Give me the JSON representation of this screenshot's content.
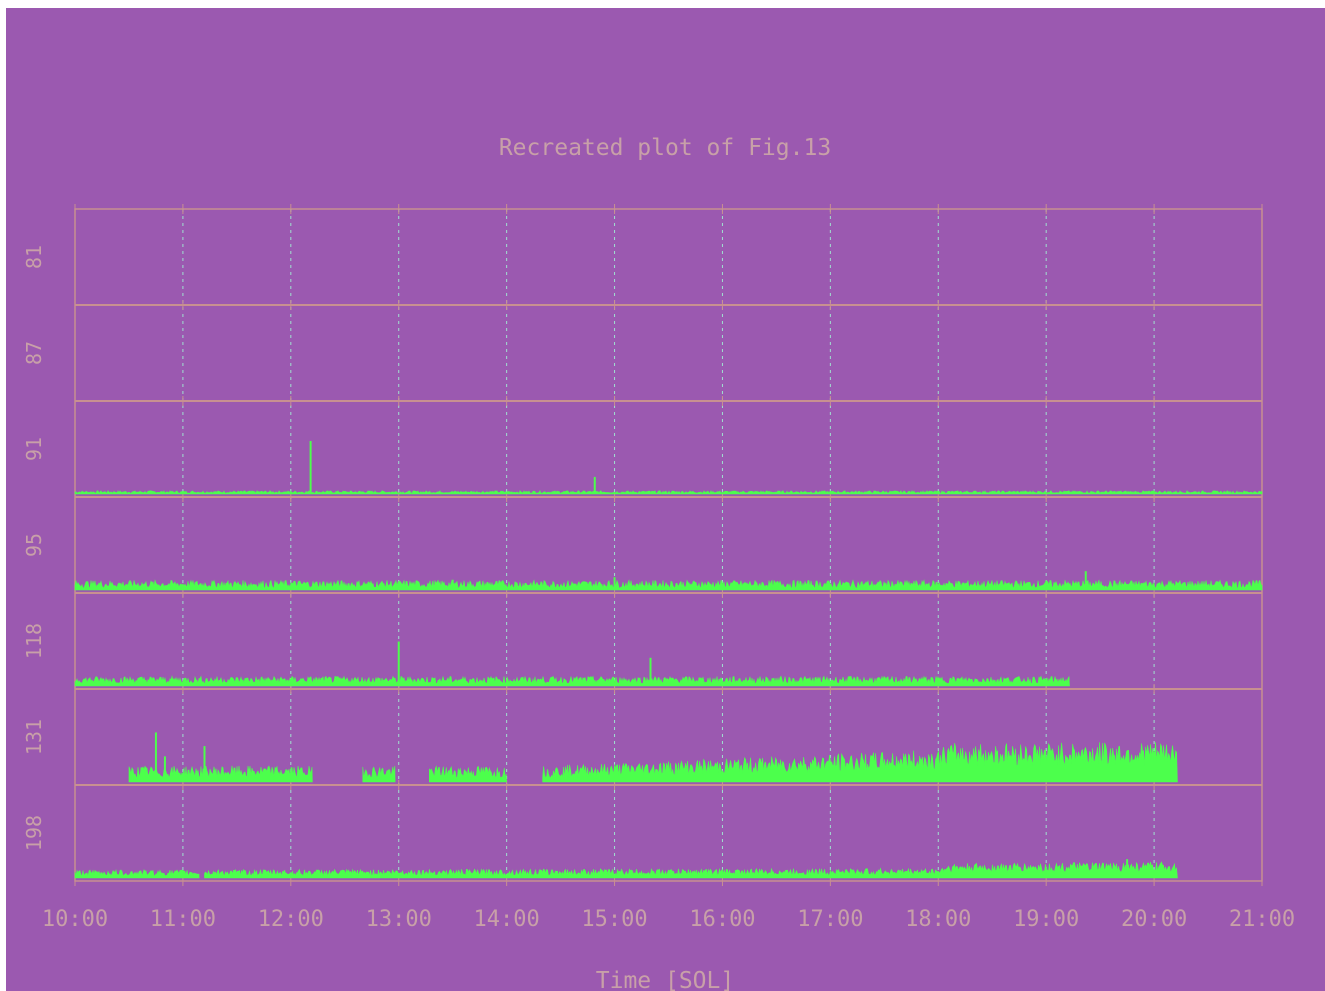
{
  "chart_data": {
    "type": "area",
    "title": "Recreated plot of Fig.13",
    "xlabel": "Time [SOL]",
    "ylabel": "",
    "x_ticks": [
      "10:00",
      "11:00",
      "12:00",
      "13:00",
      "14:00",
      "15:00",
      "16:00",
      "17:00",
      "18:00",
      "19:00",
      "20:00",
      "21:00"
    ],
    "xlim": [
      "10:00",
      "21:00"
    ],
    "grid": true,
    "panels": [
      {
        "label": "81",
        "segments": []
      },
      {
        "label": "87",
        "segments": []
      },
      {
        "label": "91",
        "segments": [
          [
            "10:00",
            "21:00"
          ]
        ],
        "base": 0.02,
        "noise": 0.02,
        "spikes": [
          [
            "12:11",
            0.62
          ],
          [
            "14:49",
            0.2
          ]
        ]
      },
      {
        "label": "95",
        "segments": [
          [
            "10:00",
            "21:00"
          ]
        ],
        "base": 0.05,
        "noise": 0.07,
        "spikes": [
          [
            "19:22",
            0.22
          ],
          [
            "15:00",
            0.15
          ],
          [
            "13:30",
            0.12
          ]
        ]
      },
      {
        "label": "118",
        "segments": [
          [
            "10:00",
            "19:13"
          ]
        ],
        "base": 0.06,
        "noise": 0.06,
        "spikes": [
          [
            "13:00",
            0.52
          ],
          [
            "15:20",
            0.33
          ]
        ]
      },
      {
        "label": "131",
        "segments": [
          [
            "10:30",
            "12:12"
          ],
          [
            "12:40",
            "12:58"
          ],
          [
            "13:17",
            "14:00"
          ],
          [
            "14:20",
            "20:13"
          ]
        ],
        "base": 0.18,
        "noise": 0.1,
        "ramp": [
          [
            "14:20",
            0.1
          ],
          [
            "18:00",
            0.3
          ],
          [
            "18:05",
            0.38
          ],
          [
            "20:13",
            0.4
          ]
        ],
        "spikes": [
          [
            "10:45",
            0.58
          ],
          [
            "11:12",
            0.42
          ],
          [
            "10:50",
            0.3
          ]
        ]
      },
      {
        "label": "198",
        "segments": [
          [
            "10:00",
            "11:09"
          ],
          [
            "11:12",
            "20:13"
          ]
        ],
        "base": 0.06,
        "noise": 0.05,
        "ramp": [
          [
            "10:00",
            0.05
          ],
          [
            "18:00",
            0.07
          ],
          [
            "18:05",
            0.13
          ],
          [
            "20:13",
            0.15
          ]
        ],
        "spikes": [
          [
            "19:45",
            0.22
          ]
        ]
      }
    ],
    "colors": {
      "background": "#9b59b0",
      "frame": "#c89090",
      "grid": "#9fe0d0",
      "series": "#4cff4c",
      "text": "#c8a0a8"
    }
  }
}
